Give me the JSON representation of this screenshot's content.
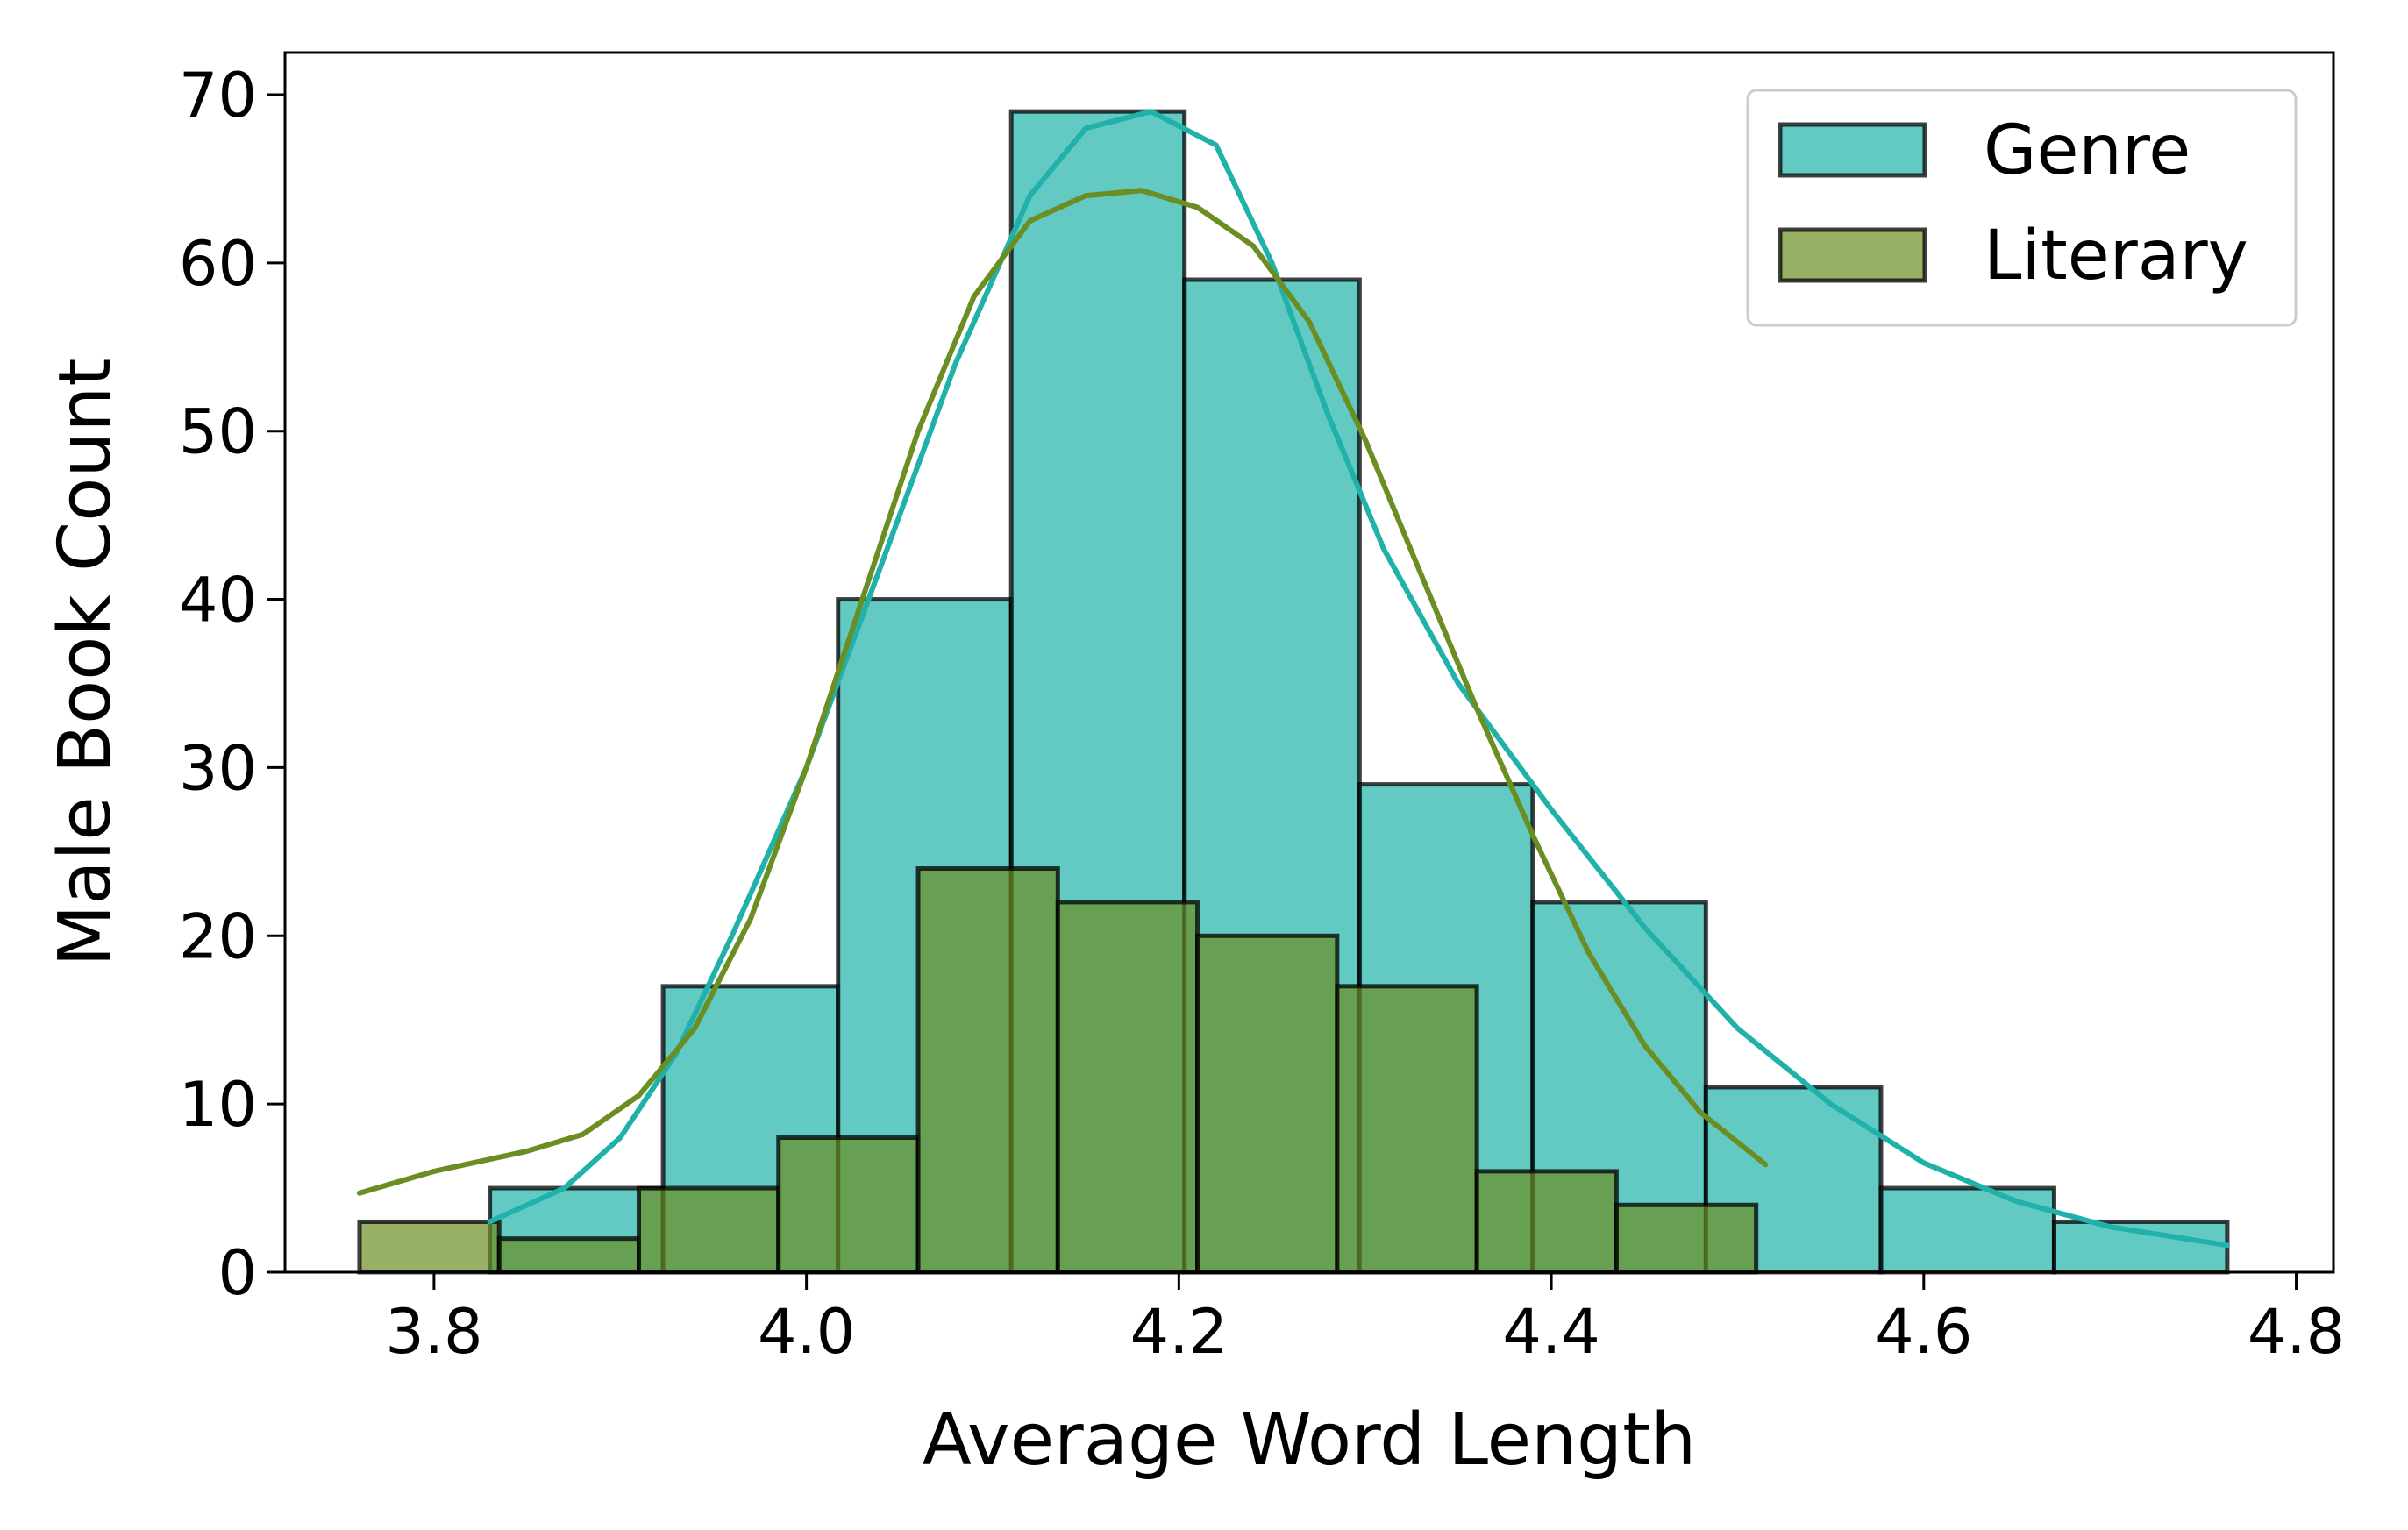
{
  "chart_data": {
    "type": "histogram",
    "xlabel": "Average Word Length",
    "ylabel": "Male Book Count",
    "ylabel_color": "#4169e1",
    "xlim": [
      3.72,
      4.82
    ],
    "ylim": [
      0,
      72.5
    ],
    "xticks": [
      "3.8",
      "4.0",
      "4.2",
      "4.4",
      "4.6",
      "4.8"
    ],
    "yticks": [
      "0",
      "10",
      "20",
      "30",
      "40",
      "50",
      "60",
      "70"
    ],
    "grid": false,
    "legend_position": "top-right",
    "series": [
      {
        "name": "Genre",
        "color": "#20b2aa",
        "line_color": "#20b2aa",
        "bins": [
          {
            "x0": 3.83,
            "x1": 3.923,
            "count": 5
          },
          {
            "x0": 3.923,
            "x1": 4.017,
            "count": 17
          },
          {
            "x0": 4.017,
            "x1": 4.11,
            "count": 40
          },
          {
            "x0": 4.11,
            "x1": 4.203,
            "count": 69
          },
          {
            "x0": 4.203,
            "x1": 4.297,
            "count": 59
          },
          {
            "x0": 4.297,
            "x1": 4.39,
            "count": 29
          },
          {
            "x0": 4.39,
            "x1": 4.483,
            "count": 22
          },
          {
            "x0": 4.483,
            "x1": 4.577,
            "count": 11
          },
          {
            "x0": 4.577,
            "x1": 4.67,
            "count": 5
          },
          {
            "x0": 4.67,
            "x1": 4.763,
            "count": 3
          }
        ],
        "kde": [
          [
            3.83,
            3.0
          ],
          [
            3.87,
            5.0
          ],
          [
            3.9,
            8.0
          ],
          [
            3.93,
            13.0
          ],
          [
            3.96,
            20.0
          ],
          [
            4.0,
            30.0
          ],
          [
            4.04,
            42.0
          ],
          [
            4.08,
            54.0
          ],
          [
            4.12,
            64.0
          ],
          [
            4.15,
            68.0
          ],
          [
            4.185,
            69.0
          ],
          [
            4.22,
            67.0
          ],
          [
            4.25,
            60.0
          ],
          [
            4.28,
            51.0
          ],
          [
            4.31,
            43.0
          ],
          [
            4.35,
            35.0
          ],
          [
            4.4,
            27.5
          ],
          [
            4.45,
            20.5
          ],
          [
            4.5,
            14.5
          ],
          [
            4.55,
            10.0
          ],
          [
            4.6,
            6.5
          ],
          [
            4.65,
            4.2
          ],
          [
            4.7,
            2.7
          ],
          [
            4.763,
            1.6
          ]
        ]
      },
      {
        "name": "Literary",
        "color": "#6b8e23",
        "line_color": "#6b8e23",
        "bins": [
          {
            "x0": 3.76,
            "x1": 3.835,
            "count": 3
          },
          {
            "x0": 3.835,
            "x1": 3.91,
            "count": 2
          },
          {
            "x0": 3.91,
            "x1": 3.985,
            "count": 5
          },
          {
            "x0": 3.985,
            "x1": 4.06,
            "count": 8
          },
          {
            "x0": 4.06,
            "x1": 4.135,
            "count": 24
          },
          {
            "x0": 4.135,
            "x1": 4.21,
            "count": 22
          },
          {
            "x0": 4.21,
            "x1": 4.285,
            "count": 20
          },
          {
            "x0": 4.285,
            "x1": 4.36,
            "count": 17
          },
          {
            "x0": 4.36,
            "x1": 4.435,
            "count": 6
          },
          {
            "x0": 4.435,
            "x1": 4.51,
            "count": 4
          }
        ],
        "kde": [
          [
            3.76,
            4.7
          ],
          [
            3.8,
            6.0
          ],
          [
            3.85,
            7.2
          ],
          [
            3.88,
            8.2
          ],
          [
            3.91,
            10.5
          ],
          [
            3.94,
            14.5
          ],
          [
            3.97,
            21.0
          ],
          [
            4.0,
            30.0
          ],
          [
            4.03,
            40.0
          ],
          [
            4.06,
            50.0
          ],
          [
            4.09,
            58.0
          ],
          [
            4.12,
            62.5
          ],
          [
            4.15,
            64.0
          ],
          [
            4.18,
            64.3
          ],
          [
            4.21,
            63.3
          ],
          [
            4.24,
            61.0
          ],
          [
            4.27,
            56.5
          ],
          [
            4.3,
            49.5
          ],
          [
            4.33,
            41.5
          ],
          [
            4.36,
            33.5
          ],
          [
            4.39,
            26.0
          ],
          [
            4.42,
            19.0
          ],
          [
            4.45,
            13.5
          ],
          [
            4.48,
            9.5
          ],
          [
            4.515,
            6.4
          ]
        ]
      }
    ]
  }
}
